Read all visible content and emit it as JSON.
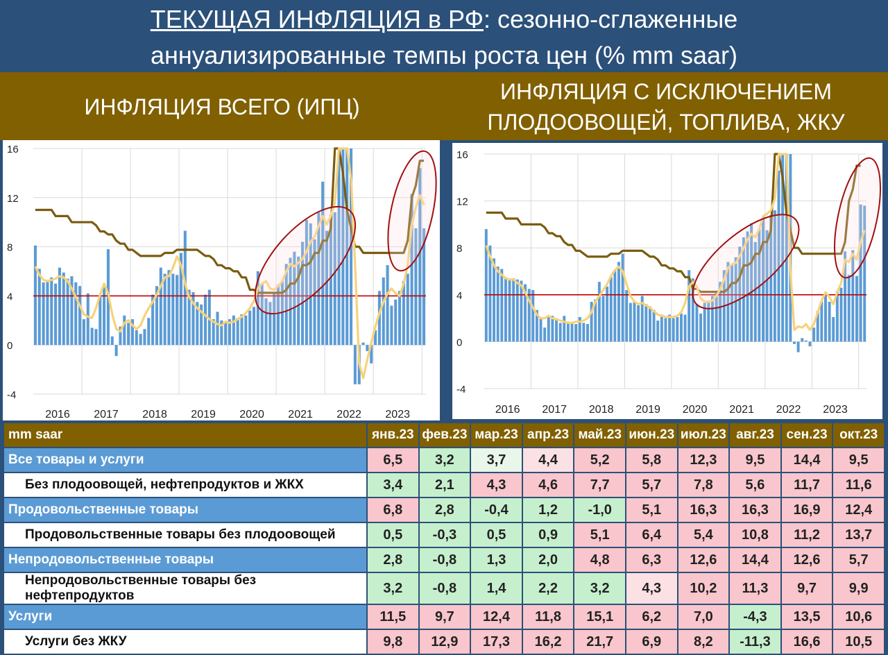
{
  "title": {
    "line1_underlined": "ТЕКУЩАЯ ИНФЛЯЦИЯ в РФ",
    "line1_rest": ": сезонно-сглаженные",
    "line2": "аннуализированные темпы роста цен (% mm saar)"
  },
  "subtitles": {
    "left": "ИНФЛЯЦИЯ ВСЕГО (ИПЦ)",
    "right_line1": "ИНФЛЯЦИЯ С ИСКЛЮЧЕНИЕМ",
    "right_line2": "ПЛОДООВОЩЕЙ, ТОПЛИВА, ЖКУ"
  },
  "colors": {
    "title_bg": "#2b5079",
    "subtitle_bg": "#806000",
    "bars": "#5b9bd5",
    "smoothed_line": "#f7d27a",
    "policy_rate_line": "#7a5c10",
    "target_line": "#c00000",
    "highlight_ellipse": "#a01010",
    "cell_green": "#c6efce",
    "cell_pale_green": "#e9f6ea",
    "cell_pink": "#f8c6cc",
    "cell_pale_pink": "#fbe1e4"
  },
  "chart_data": [
    {
      "type": "bar",
      "overlay_lines": [
        "smoothed_saar",
        "key_rate"
      ],
      "x_start": "2016-01",
      "xtick_labels": [
        "2016",
        "2017",
        "2018",
        "2019",
        "2020",
        "2021",
        "2022",
        "2023"
      ],
      "ytick_labels": [
        "-4",
        "0",
        "4",
        "8",
        "12",
        "16"
      ],
      "ylim": [
        -4,
        16
      ],
      "target_level": 4,
      "bars": [
        8.1,
        6.2,
        5.1,
        5.3,
        5.5,
        5.0,
        6.3,
        5.9,
        5.4,
        5.6,
        5.1,
        4.8,
        2.1,
        4.2,
        1.4,
        1.3,
        4.0,
        4.7,
        7.8,
        0.7,
        -0.9,
        1.5,
        2.4,
        1.8,
        2.1,
        1.2,
        0.9,
        1.3,
        2.2,
        4.1,
        4.8,
        6.3,
        5.8,
        6.1,
        5.8,
        5.7,
        7.5,
        9.3,
        4.5,
        4.3,
        3.5,
        3.3,
        4.1,
        4.5,
        2.1,
        2.7,
        2.0,
        1.8,
        2.1,
        2.4,
        2.2,
        2.5,
        2.4,
        2.8,
        3.1,
        6.0,
        5.0,
        3.8,
        3.5,
        4.2,
        4.9,
        5.2,
        6.6,
        7.1,
        7.6,
        7.2,
        8.4,
        10.2,
        9.9,
        8.6,
        10.8,
        13.3,
        9.3,
        10.6,
        10.8,
        15.5,
        16,
        16,
        16,
        -3.2,
        -3.2,
        0.2,
        -0.5,
        -1.5,
        1.2,
        4.4,
        5.5,
        6.5,
        3.2,
        3.7,
        4.4,
        5.2,
        5.8,
        12.3,
        9.5,
        14.4,
        9.5
      ],
      "smoothed": [
        6.4,
        5.7,
        5.3,
        5.2,
        5.3,
        5.4,
        5.6,
        5.5,
        5.2,
        4.6,
        3.9,
        3.2,
        2.5,
        2.3,
        2.2,
        3.0,
        4.1,
        5.0,
        4.2,
        2.5,
        1.3,
        1.1,
        1.8,
        2.0,
        1.6,
        1.3,
        1.6,
        2.4,
        3.0,
        3.5,
        4.1,
        4.8,
        5.5,
        5.6,
        6.3,
        7.2,
        6.5,
        5.0,
        3.9,
        3.4,
        3.0,
        2.7,
        2.4,
        2.1,
        1.9,
        1.7,
        1.6,
        1.9,
        1.8,
        1.9,
        2.1,
        2.3,
        2.6,
        3.0,
        3.6,
        4.6,
        5.0,
        5.2,
        4.6,
        4.5,
        4.8,
        5.2,
        6.0,
        6.6,
        6.4,
        6.7,
        7.0,
        7.6,
        8.4,
        8.8,
        9.7,
        10.5,
        9.8,
        10.5,
        11.6,
        16,
        16,
        16,
        13.5,
        6.5,
        -1.5,
        -2.7,
        -1.2,
        0.2,
        1.5,
        2.6,
        3.5,
        4.2,
        4.6,
        4.2,
        4.0,
        5.0,
        6.5,
        9.8,
        11.2,
        12.2,
        11.4
      ],
      "key_rate": [
        11,
        11,
        11,
        11,
        11,
        10.5,
        10.5,
        10.5,
        10.5,
        10,
        10,
        10,
        10,
        10,
        10,
        9.75,
        9.25,
        9.25,
        9,
        9,
        8.5,
        8.25,
        8.25,
        7.75,
        7.75,
        7.5,
        7.25,
        7.25,
        7.25,
        7.25,
        7.25,
        7.25,
        7.5,
        7.5,
        7.5,
        7.75,
        7.75,
        7.75,
        7.75,
        7.75,
        7.75,
        7.5,
        7.25,
        7.25,
        7,
        6.5,
        6.5,
        6.25,
        6.25,
        6,
        6,
        5.5,
        5.5,
        4.5,
        4.5,
        4.25,
        4.25,
        4.25,
        4.25,
        4.25,
        4.25,
        4.25,
        4.5,
        5,
        5,
        5.5,
        6.5,
        6.5,
        6.75,
        7.5,
        7.5,
        8.5,
        8.5,
        9.5,
        20,
        17,
        14,
        11,
        9.5,
        8,
        8,
        7.5,
        7.5,
        7.5,
        7.5,
        7.5,
        7.5,
        7.5,
        7.5,
        7.5,
        7.5,
        7.5,
        8.5,
        12,
        13,
        15,
        15
      ]
    },
    {
      "type": "bar",
      "overlay_lines": [
        "smoothed_saar",
        "key_rate"
      ],
      "x_start": "2016-01",
      "xtick_labels": [
        "2016",
        "2017",
        "2018",
        "2019",
        "2020",
        "2021",
        "2022",
        "2023"
      ],
      "ytick_labels": [
        "-4",
        "0",
        "4",
        "8",
        "12",
        "16"
      ],
      "ylim": [
        -4,
        16
      ],
      "target_level": 4,
      "bars": [
        9.6,
        8.2,
        7.1,
        6.4,
        6.2,
        5.5,
        5.3,
        5.4,
        5.3,
        5.2,
        4.9,
        4.5,
        4.4,
        2.7,
        2.0,
        1.2,
        2.1,
        2.2,
        2.0,
        1.6,
        2.2,
        1.7,
        1.6,
        1.5,
        2.1,
        1.6,
        1.5,
        3.4,
        3.6,
        5.1,
        3.9,
        4.7,
        5.5,
        6.1,
        6.8,
        7.5,
        4.4,
        3.3,
        3.4,
        3.1,
        3.9,
        3.2,
        3.0,
        2.7,
        1.8,
        2.3,
        2.0,
        2.3,
        2.0,
        2.1,
        2.4,
        2.3,
        6.1,
        5.4,
        3.2,
        2.4,
        3.3,
        3.5,
        3.9,
        4.3,
        5.1,
        6.1,
        6.8,
        6.6,
        7.2,
        8.1,
        8.9,
        9.4,
        10.1,
        8.5,
        9.6,
        10.7,
        9.5,
        10.8,
        11.2,
        14.6,
        16,
        16,
        16,
        -0.2,
        -0.9,
        0.3,
        0.1,
        -0.4,
        1.2,
        2.6,
        3.4,
        4.2,
        3.4,
        2.1,
        4.3,
        4.6,
        7.7,
        5.7,
        7.8,
        5.6,
        11.7,
        11.6
      ],
      "smoothed": [
        8.2,
        7.3,
        6.5,
        6.0,
        5.7,
        5.4,
        5.3,
        5.3,
        5.0,
        4.8,
        4.2,
        3.5,
        2.9,
        2.3,
        2.0,
        2.0,
        2.2,
        2.0,
        1.9,
        1.8,
        1.7,
        1.6,
        1.6,
        1.7,
        1.7,
        1.8,
        2.0,
        2.5,
        3.4,
        3.9,
        4.4,
        4.9,
        5.6,
        6.1,
        6.4,
        6.0,
        4.9,
        3.9,
        3.4,
        3.2,
        3.3,
        3.1,
        2.9,
        2.6,
        2.3,
        2.2,
        2.1,
        2.1,
        2.1,
        2.2,
        2.5,
        3.3,
        4.7,
        5.1,
        4.7,
        3.7,
        3.4,
        3.4,
        3.5,
        3.9,
        4.5,
        5.3,
        6.3,
        6.6,
        6.7,
        7.3,
        8.0,
        8.7,
        9.2,
        8.9,
        9.6,
        10.7,
        10.9,
        11.2,
        12.2,
        16,
        16,
        16,
        6.0,
        1.0,
        1.3,
        1.2,
        1.5,
        1.0,
        1.5,
        2.5,
        3.5,
        4.2,
        3.8,
        3.2,
        4.2,
        5.0,
        7.0,
        6.8,
        7.5,
        7.0,
        8.5,
        9.5
      ],
      "key_rate": [
        11,
        11,
        11,
        11,
        11,
        10.5,
        10.5,
        10.5,
        10.5,
        10,
        10,
        10,
        10,
        10,
        10,
        9.75,
        9.25,
        9.25,
        9,
        9,
        8.5,
        8.25,
        8.25,
        7.75,
        7.75,
        7.5,
        7.25,
        7.25,
        7.25,
        7.25,
        7.25,
        7.25,
        7.5,
        7.5,
        7.5,
        7.75,
        7.75,
        7.75,
        7.75,
        7.75,
        7.75,
        7.5,
        7.25,
        7.25,
        7,
        6.5,
        6.5,
        6.25,
        6.25,
        6,
        6,
        5.5,
        5.5,
        4.5,
        4.5,
        4.25,
        4.25,
        4.25,
        4.25,
        4.25,
        4.25,
        4.25,
        4.5,
        5,
        5,
        5.5,
        6.5,
        6.5,
        6.75,
        7.5,
        7.5,
        8.5,
        8.5,
        9.5,
        20,
        17,
        14,
        11,
        9.5,
        8,
        8,
        7.5,
        7.5,
        7.5,
        7.5,
        7.5,
        7.5,
        7.5,
        7.5,
        7.5,
        7.5,
        7.5,
        8.5,
        12,
        13,
        15,
        15
      ]
    }
  ],
  "table": {
    "header_label": "mm saar",
    "months": [
      "янв.23",
      "фев.23",
      "мар.23",
      "апр.23",
      "май.23",
      "июн.23",
      "июл.23",
      "авг.23",
      "сен.23",
      "окт.23"
    ],
    "rows": [
      {
        "label": "Все товары и услуги",
        "level": "main",
        "values": [
          "6,5",
          "3,2",
          "3,7",
          "4,4",
          "5,2",
          "5,8",
          "12,3",
          "9,5",
          "14,4",
          "9,5"
        ],
        "colors": [
          "pk",
          "lg",
          "pale",
          "ppk",
          "pk",
          "pk",
          "pk",
          "pk",
          "pk",
          "pk"
        ]
      },
      {
        "label": "Без плодоовощей, нефтепродуктов и ЖКХ",
        "level": "sub",
        "values": [
          "3,4",
          "2,1",
          "4,3",
          "4,6",
          "7,7",
          "5,7",
          "7,8",
          "5,6",
          "11,7",
          "11,6"
        ],
        "colors": [
          "lg",
          "lg",
          "pk",
          "pk",
          "pk",
          "pk",
          "pk",
          "pk",
          "pk",
          "pk"
        ]
      },
      {
        "label": "Продовольственные товары",
        "level": "main",
        "values": [
          "6,8",
          "2,8",
          "-0,4",
          "1,2",
          "-1,0",
          "5,1",
          "16,3",
          "16,3",
          "16,9",
          "12,4"
        ],
        "colors": [
          "pk",
          "lg",
          "lg",
          "lg",
          "lg",
          "pk",
          "pk",
          "pk",
          "pk",
          "pk"
        ]
      },
      {
        "label": "Продовольственные товары без плодоовощей",
        "level": "sub",
        "values": [
          "0,5",
          "-0,3",
          "0,5",
          "0,9",
          "5,1",
          "6,4",
          "5,4",
          "10,8",
          "11,2",
          "13,7"
        ],
        "colors": [
          "lg",
          "lg",
          "lg",
          "lg",
          "pk",
          "pk",
          "pk",
          "pk",
          "pk",
          "pk"
        ]
      },
      {
        "label": "Непродовольственные товары",
        "level": "main",
        "values": [
          "2,8",
          "-0,8",
          "1,3",
          "2,0",
          "4,8",
          "6,3",
          "12,6",
          "14,4",
          "12,6",
          "5,7"
        ],
        "colors": [
          "lg",
          "lg",
          "lg",
          "lg",
          "pk",
          "pk",
          "pk",
          "pk",
          "pk",
          "pk"
        ]
      },
      {
        "label": "Непродовольственные товары без нефтепродуктов",
        "level": "sub",
        "values": [
          "3,2",
          "-0,8",
          "1,4",
          "2,2",
          "3,2",
          "4,3",
          "10,2",
          "11,3",
          "9,7",
          "9,9"
        ],
        "colors": [
          "lg",
          "lg",
          "lg",
          "lg",
          "lg",
          "ppk",
          "pk",
          "pk",
          "pk",
          "pk"
        ]
      },
      {
        "label": "Услуги",
        "level": "main",
        "values": [
          "11,5",
          "9,7",
          "12,4",
          "11,8",
          "15,1",
          "6,2",
          "7,0",
          "-4,3",
          "13,5",
          "10,6"
        ],
        "colors": [
          "pk",
          "pk",
          "pk",
          "pk",
          "pk",
          "pk",
          "pk",
          "lg",
          "pk",
          "pk"
        ]
      },
      {
        "label": "Услуги без ЖКУ",
        "level": "sub",
        "values": [
          "9,8",
          "12,9",
          "17,3",
          "16,2",
          "21,7",
          "6,9",
          "8,2",
          "-11,3",
          "16,6",
          "10,5"
        ],
        "colors": [
          "pk",
          "pk",
          "pk",
          "pk",
          "pk",
          "pk",
          "pk",
          "lg",
          "pk",
          "pk"
        ]
      }
    ]
  }
}
